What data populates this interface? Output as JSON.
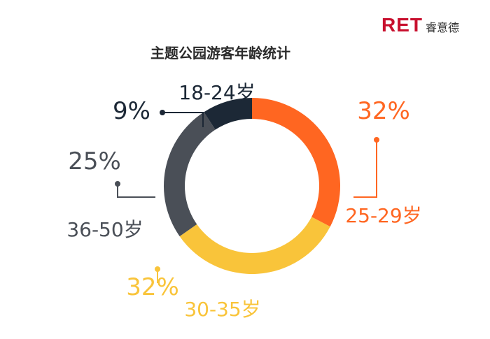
{
  "logo": {
    "mark": "RET",
    "text": "睿意德"
  },
  "chart_data": {
    "type": "pie",
    "title": "主题公园游客年龄统计",
    "donut": true,
    "slices": [
      {
        "label": "25-29岁",
        "value": 32,
        "value_label": "32%",
        "color": "#ff6621"
      },
      {
        "label": "30-35岁",
        "value": 32,
        "value_label": "32%",
        "color": "#f9c43a"
      },
      {
        "label": "36-50岁",
        "value": 25,
        "value_label": "25%",
        "color": "#4a4f57"
      },
      {
        "label": "18-24岁",
        "value": 9,
        "value_label": "9%",
        "color": "#1c2836"
      }
    ]
  }
}
